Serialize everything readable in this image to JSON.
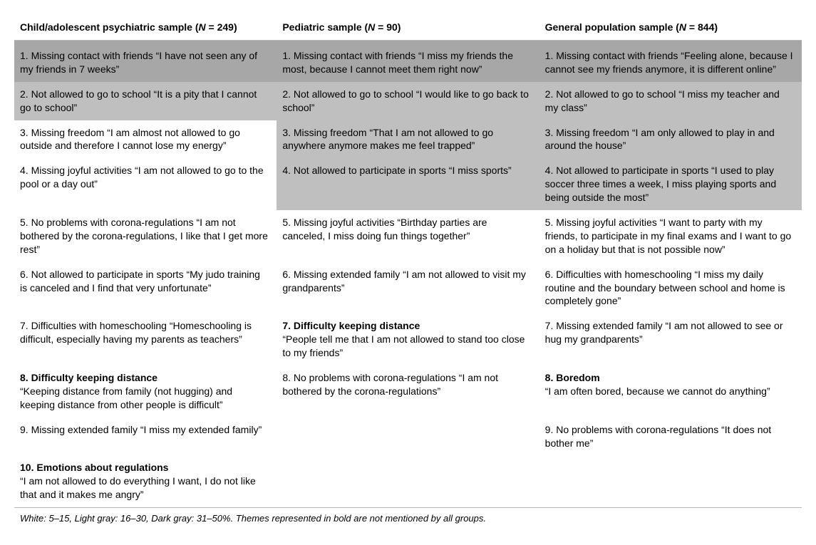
{
  "table": {
    "background_colors": {
      "white": "#ffffff",
      "light": "#bfbfbf",
      "dark": "#a7a7a7"
    },
    "font": {
      "header_size": 14,
      "cell_size": 14,
      "footer_size": 13,
      "line_height": 1.35
    },
    "rule_color": "#b8b8b8",
    "headers": {
      "col1": {
        "label": "Child/adolescent psychiatric sample (",
        "n_italic": "N",
        "eq": " = 249)"
      },
      "col2": {
        "label": "Pediatric sample (",
        "n_italic": "N",
        "eq": " = 90)"
      },
      "col3": {
        "label": "General population sample (",
        "n_italic": "N",
        "eq": " = 844)"
      }
    },
    "rows": [
      {
        "c1": {
          "text": "1. Missing contact with friends “I have not seen any of my friends in 7 weeks”",
          "shade": "dark",
          "bold": false
        },
        "c2": {
          "text": "1. Missing contact with friends “I miss my friends the most, because I cannot meet them right now”",
          "shade": "dark",
          "bold": false
        },
        "c3": {
          "text": "1. Missing contact with friends “Feeling alone, because I cannot see my friends anymore, it is different online”",
          "shade": "dark",
          "bold": false
        }
      },
      {
        "c1": {
          "text": "2. Not allowed to go to school “It is a pity that I cannot go to school”",
          "shade": "light",
          "bold": false
        },
        "c2": {
          "text": "2. Not allowed to go to school “I would like to go back to school”",
          "shade": "light",
          "bold": false
        },
        "c3": {
          "text": "2. Not allowed to go to school “I miss my teacher and my class”",
          "shade": "light",
          "bold": false
        }
      },
      {
        "c1": {
          "text": "3. Missing freedom “I am almost not allowed to go outside and therefore I cannot lose my energy”",
          "shade": "white",
          "bold": false
        },
        "c2": {
          "text": "3. Missing freedom “That I am not allowed to go anywhere anymore makes me feel trapped”",
          "shade": "light",
          "bold": false
        },
        "c3": {
          "text": "3. Missing freedom “I am only allowed to play in and around the house”",
          "shade": "light",
          "bold": false
        }
      },
      {
        "c1": {
          "text": "4. Missing joyful activities “I am not allowed to go to the pool or a day out”",
          "shade": "white",
          "bold": false
        },
        "c2": {
          "text": "4. Not allowed to participate in sports “I miss sports”",
          "shade": "light",
          "bold": false
        },
        "c3": {
          "text": "4. Not allowed to participate in sports “I used to play soccer three times a week, I miss playing sports and being outside the most”",
          "shade": "light",
          "bold": false
        }
      },
      {
        "c1": {
          "text": "5. No problems with corona-regulations “I am not bothered by the corona-regulations, I like that I get more rest”",
          "shade": "white",
          "bold": false
        },
        "c2": {
          "text": "5. Missing joyful activities “Birthday parties are canceled, I miss doing fun things together”",
          "shade": "white",
          "bold": false
        },
        "c3": {
          "text": "5. Missing joyful activities “I want to party with my friends, to participate in my final exams and I want to go on a holiday but that is not possible now”",
          "shade": "white",
          "bold": false
        }
      },
      {
        "c1": {
          "text": "6. Not allowed to participate in sports “My judo training is canceled and I find that very unfortunate”",
          "shade": "white",
          "bold": false
        },
        "c2": {
          "text": "6. Missing extended family “I am not allowed to visit my grandparents”",
          "shade": "white",
          "bold": false
        },
        "c3": {
          "text": "6. Difficulties with homeschooling “I miss my daily routine and the boundary between school and home is completely gone”",
          "shade": "white",
          "bold": false
        }
      },
      {
        "c1": {
          "text": "7. Difficulties with homeschooling “Homeschooling is difficult, especially having my parents as teachers”",
          "shade": "white",
          "bold": false
        },
        "c2": {
          "bold_lead": "7. Difficulty keeping distance",
          "rest": "“People tell me that I am not allowed to stand too close to my friends”",
          "shade": "white"
        },
        "c3": {
          "text": "7. Missing extended family “I am not allowed to see or hug my grandparents”",
          "shade": "white",
          "bold": false
        }
      },
      {
        "c1": {
          "bold_lead": "8. Difficulty keeping distance",
          "rest": "“Keeping distance from family (not hugging) and keeping distance from other people is difficult”",
          "shade": "white"
        },
        "c2": {
          "text": "8. No problems with corona-regulations “I am not bothered by the corona-regulations”",
          "shade": "white",
          "bold": false
        },
        "c3": {
          "bold_lead": "8. Boredom",
          "rest": "“I am often bored, because we cannot do anything”",
          "shade": "white"
        }
      },
      {
        "c1": {
          "text": "9. Missing extended family “I miss my extended family”",
          "shade": "white",
          "bold": false
        },
        "c2": {
          "text": "",
          "shade": "white",
          "bold": false
        },
        "c3": {
          "text": "9. No problems with corona-regulations “It does not bother me”",
          "shade": "white",
          "bold": false
        }
      },
      {
        "c1": {
          "bold_lead": "10. Emotions about regulations",
          "rest": "“I am not allowed to do everything I want, I do not like that and it makes me angry”",
          "shade": "white"
        },
        "c2": {
          "text": "",
          "shade": "white",
          "bold": false
        },
        "c3": {
          "text": "",
          "shade": "white",
          "bold": false
        }
      }
    ],
    "footer": "White: 5–15, Light gray: 16–30, Dark gray: 31–50%. Themes represented in bold are not mentioned by all groups."
  }
}
